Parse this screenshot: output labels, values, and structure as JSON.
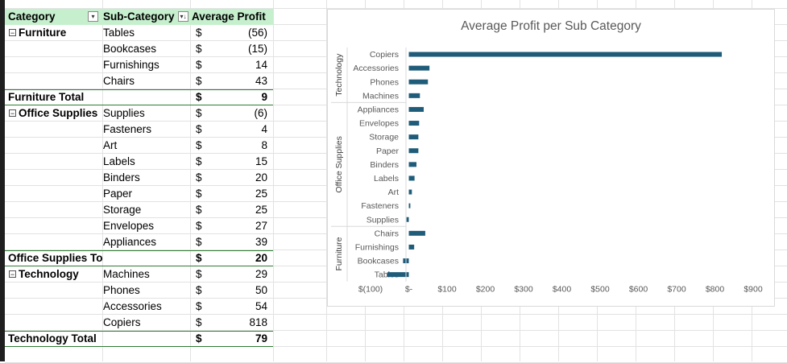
{
  "pivot": {
    "headers": {
      "category": "Category",
      "subcategory": "Sub-Category",
      "value": "Average Profit"
    },
    "currency_symbol": "$",
    "rows": [
      {
        "cat": "Furniture",
        "sub": "Tables",
        "value": "(56)",
        "kind": "first"
      },
      {
        "cat": "",
        "sub": "Bookcases",
        "value": "(15)",
        "kind": "item"
      },
      {
        "cat": "",
        "sub": "Furnishings",
        "value": "14",
        "kind": "item"
      },
      {
        "cat": "",
        "sub": "Chairs",
        "value": "43",
        "kind": "item"
      },
      {
        "cat": "Furniture Total",
        "sub": "",
        "value": "9",
        "kind": "total"
      },
      {
        "cat": "Office Supplies",
        "sub": "Supplies",
        "value": "(6)",
        "kind": "first"
      },
      {
        "cat": "",
        "sub": "Fasteners",
        "value": "4",
        "kind": "item"
      },
      {
        "cat": "",
        "sub": "Art",
        "value": "8",
        "kind": "item"
      },
      {
        "cat": "",
        "sub": "Labels",
        "value": "15",
        "kind": "item"
      },
      {
        "cat": "",
        "sub": "Binders",
        "value": "20",
        "kind": "item"
      },
      {
        "cat": "",
        "sub": "Paper",
        "value": "25",
        "kind": "item"
      },
      {
        "cat": "",
        "sub": "Storage",
        "value": "25",
        "kind": "item"
      },
      {
        "cat": "",
        "sub": "Envelopes",
        "value": "27",
        "kind": "item"
      },
      {
        "cat": "",
        "sub": "Appliances",
        "value": "39",
        "kind": "item"
      },
      {
        "cat": "Office Supplies Total",
        "sub": "",
        "value": "20",
        "kind": "total"
      },
      {
        "cat": "Technology",
        "sub": "Machines",
        "value": "29",
        "kind": "first"
      },
      {
        "cat": "",
        "sub": "Phones",
        "value": "50",
        "kind": "item"
      },
      {
        "cat": "",
        "sub": "Accessories",
        "value": "54",
        "kind": "item"
      },
      {
        "cat": "",
        "sub": "Copiers",
        "value": "818",
        "kind": "item"
      },
      {
        "cat": "Technology Total",
        "sub": "",
        "value": "79",
        "kind": "total"
      }
    ]
  },
  "colors": {
    "header_band": "#c6efce",
    "bar": "#1f5c7a",
    "total_rule": "#2e7d32"
  },
  "chart_data": {
    "type": "bar",
    "orientation": "horizontal",
    "title": "Average Profit per Sub Category",
    "groups": [
      {
        "name": "Technology",
        "categories": [
          "Copiers",
          "Accessories",
          "Phones",
          "Machines"
        ],
        "values": [
          818,
          54,
          50,
          29
        ]
      },
      {
        "name": "Office Supplies",
        "categories": [
          "Appliances",
          "Envelopes",
          "Storage",
          "Paper",
          "Binders",
          "Labels",
          "Art",
          "Fasteners",
          "Supplies"
        ],
        "values": [
          39,
          27,
          25,
          25,
          20,
          15,
          8,
          4,
          -6
        ]
      },
      {
        "name": "Furniture",
        "categories": [
          "Chairs",
          "Furnishings",
          "Bookcases",
          "Tables"
        ],
        "values": [
          43,
          14,
          -15,
          -56
        ]
      }
    ],
    "xlim": [
      -100,
      900
    ],
    "xticks": [
      -100,
      0,
      100,
      200,
      300,
      400,
      500,
      600,
      700,
      800,
      900
    ],
    "xtick_labels": [
      "$(100)",
      "$-",
      "$100",
      "$200",
      "$300",
      "$400",
      "$500",
      "$600",
      "$700",
      "$800",
      "$900"
    ],
    "grid": false,
    "legend": "none"
  }
}
